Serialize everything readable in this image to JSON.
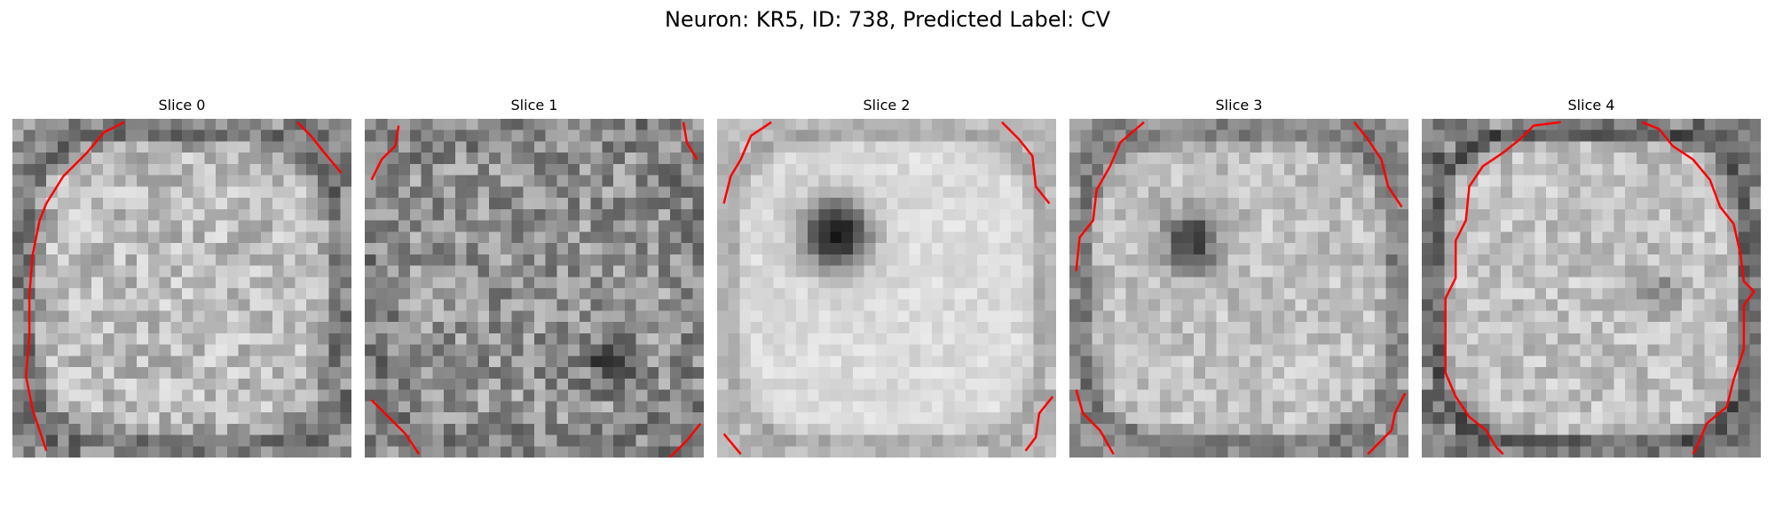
{
  "figure": {
    "title": "Neuron: KR5, ID: 738, Predicted Label: CV"
  },
  "slices": [
    {
      "title": "Slice 0"
    },
    {
      "title": "Slice 1"
    },
    {
      "title": "Slice 2"
    },
    {
      "title": "Slice 3"
    },
    {
      "title": "Slice 4"
    }
  ],
  "colors": {
    "contour": "#ff0000",
    "background": "#ffffff",
    "colormap": "grayscale"
  }
}
